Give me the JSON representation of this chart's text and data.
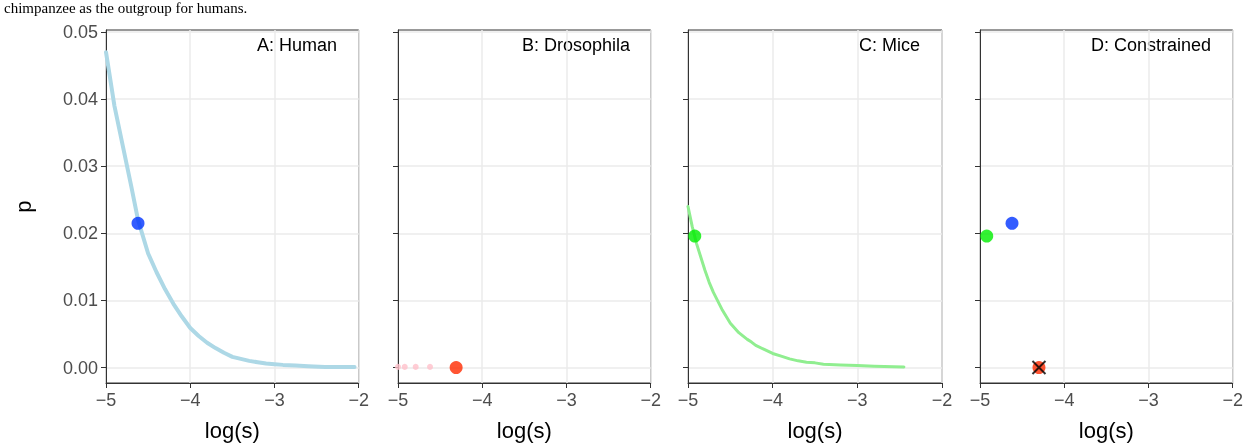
{
  "chart_data": [
    {
      "type": "line",
      "title": "A: Human",
      "xlabel": "log(s)",
      "ylabel": "p",
      "annotations": [
        "chimpanzee as the outgroup for humans."
      ],
      "xlim": [
        -5,
        -2
      ],
      "ylim": [
        -0.0023,
        0.0503
      ],
      "xticks": [
        {
          "value": -5,
          "label": "−5"
        },
        {
          "value": -4,
          "label": "−4"
        },
        {
          "value": -3,
          "label": "−3"
        },
        {
          "value": -2,
          "label": "−2"
        }
      ],
      "yticks": [
        {
          "value": 0,
          "label": "0.00"
        },
        {
          "value": 0.01,
          "label": "0.01"
        },
        {
          "value": 0.02,
          "label": "0.02"
        },
        {
          "value": 0.03,
          "label": "0.03"
        },
        {
          "value": 0.04,
          "label": "0.04"
        },
        {
          "value": 0.05,
          "label": "0.05"
        }
      ],
      "grid": true,
      "series": [
        {
          "color": "#add8e6",
          "marker": "none",
          "x": [
            -5,
            -4.9,
            -4.8,
            -4.7,
            -4.62,
            -4.5,
            -4.4,
            -4.3,
            -4.2,
            -4.1,
            -4,
            -3.9,
            -3.8,
            -3.7,
            -3.6,
            -3.5,
            -3.4,
            -3.3,
            -3.2,
            -3.1,
            -3,
            -2.9,
            -2.75,
            -2.6,
            -2.4,
            -2.05
          ],
          "values": [
            0.047,
            0.039,
            0.033,
            0.027,
            0.022,
            0.017,
            0.0142,
            0.0117,
            0.0095,
            0.0076,
            0.0059,
            0.0047,
            0.0037,
            0.0029,
            0.0022,
            0.0016,
            0.0013,
            0.001,
            0.0008,
            0.0006,
            0.0005,
            0.0004,
            0.0003,
            0.0002,
            0.0001,
            0.0001
          ]
        },
        {
          "type": "scatter",
          "color": "#0033ff",
          "marker": "circle",
          "x": [
            -4.62
          ],
          "values": [
            0.0215
          ]
        }
      ]
    },
    {
      "type": "scatter",
      "title": "B: Drosophila",
      "xlabel": "log(s)",
      "xlim": [
        -5,
        -2
      ],
      "ylim": [
        -0.0023,
        0.0503
      ],
      "tick_labels": "x",
      "xticks": [
        {
          "value": -5,
          "label": "−5"
        },
        {
          "value": -4,
          "label": "−4"
        },
        {
          "value": -3,
          "label": "−3"
        },
        {
          "value": -2,
          "label": "−2"
        }
      ],
      "yticks": [
        {
          "value": 0,
          "label": null
        },
        {
          "value": 0.01,
          "label": null
        },
        {
          "value": 0.02,
          "label": null
        },
        {
          "value": 0.03,
          "label": null
        },
        {
          "value": 0.04,
          "label": null
        },
        {
          "value": 0.05,
          "label": null
        }
      ],
      "grid": true,
      "series": [
        {
          "color": "#ffc0cb",
          "marker": "circle",
          "x": [
            -5,
            -4.92,
            -4.79,
            -4.62
          ],
          "values": [
            0.0001,
            0.0001,
            0.0001,
            0.0001
          ]
        },
        {
          "color": "#ff2a00",
          "marker": "circle",
          "x": [
            -4.31
          ],
          "values": [
            0
          ]
        }
      ]
    },
    {
      "type": "line",
      "title": "C: Mice",
      "xlabel": "log(s)",
      "xlim": [
        -5,
        -2
      ],
      "ylim": [
        -0.0023,
        0.0503
      ],
      "tick_labels": "x",
      "xticks": [
        {
          "value": -5,
          "label": "−5"
        },
        {
          "value": -4,
          "label": "−4"
        },
        {
          "value": -3,
          "label": "−3"
        },
        {
          "value": -2,
          "label": "−2"
        }
      ],
      "yticks": [
        {
          "value": 0,
          "label": null
        },
        {
          "value": 0.01,
          "label": null
        },
        {
          "value": 0.02,
          "label": null
        },
        {
          "value": 0.03,
          "label": null
        },
        {
          "value": 0.04,
          "label": null
        },
        {
          "value": 0.05,
          "label": null
        }
      ],
      "grid": true,
      "series": [
        {
          "color": "#90ee90",
          "marker": "none",
          "x": [
            -5,
            -4.95,
            -4.9,
            -4.8,
            -4.75,
            -4.7,
            -4.6,
            -4.5,
            -4.4,
            -4.3,
            -4.25,
            -4.2,
            -4.1,
            -4,
            -3.9,
            -3.8,
            -3.7,
            -3.6,
            -3.5,
            -3.4,
            -3.2,
            -3,
            -2.8,
            -2.45
          ],
          "values": [
            0.024,
            0.021,
            0.0185,
            0.0145,
            0.0127,
            0.0112,
            0.0087,
            0.0066,
            0.0052,
            0.0042,
            0.0038,
            0.0033,
            0.0027,
            0.0021,
            0.0017,
            0.0013,
            0.001,
            0.0008,
            0.0007,
            0.0005,
            0.0004,
            0.0003,
            0.0002,
            0.0001
          ]
        },
        {
          "type": "scatter",
          "color": "#00ee00",
          "marker": "circle",
          "x": [
            -4.92
          ],
          "values": [
            0.0196
          ]
        }
      ]
    },
    {
      "type": "scatter",
      "title": "D: Constrained",
      "xlabel": "log(s)",
      "xlim": [
        -5,
        -2
      ],
      "ylim": [
        -0.0023,
        0.0503
      ],
      "tick_labels": "x",
      "xticks": [
        {
          "value": -5,
          "label": "−5"
        },
        {
          "value": -4,
          "label": "−4"
        },
        {
          "value": -3,
          "label": "−3"
        },
        {
          "value": -2,
          "label": "−2"
        }
      ],
      "yticks": [
        {
          "value": 0,
          "label": null
        },
        {
          "value": 0.01,
          "label": null
        },
        {
          "value": 0.02,
          "label": null
        },
        {
          "value": 0.03,
          "label": null
        },
        {
          "value": 0.04,
          "label": null
        },
        {
          "value": 0.05,
          "label": null
        }
      ],
      "grid": true,
      "series": [
        {
          "color": "#00ee00",
          "marker": "circle",
          "x": [
            -4.92
          ],
          "values": [
            0.0196
          ]
        },
        {
          "color": "#0033ff",
          "marker": "circle",
          "x": [
            -4.62
          ],
          "values": [
            0.0215
          ]
        },
        {
          "color": "#ff2a00",
          "marker": "circle",
          "x": [
            -4.3
          ],
          "values": [
            0
          ]
        },
        {
          "color": "#000000",
          "marker": "cross",
          "x": [
            -4.3
          ],
          "values": [
            0
          ]
        }
      ]
    }
  ]
}
